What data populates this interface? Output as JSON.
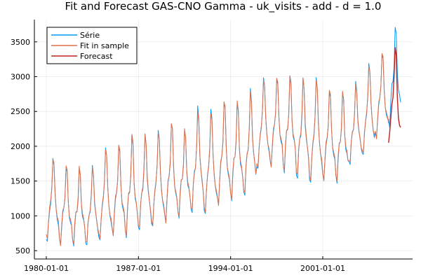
{
  "chart_data": {
    "type": "line",
    "title": "Fit and Forecast GAS-CNO Gamma - uk_visits - add - d = 1.0",
    "xlabel": "",
    "ylabel": "",
    "x_range": [
      "1980-01-01",
      "2006-12-01"
    ],
    "ylim": [
      380,
      3820
    ],
    "x_ticks": [
      "1980-01-01",
      "1987-01-01",
      "1994-01-01",
      "2001-01-01"
    ],
    "y_ticks": [
      500,
      1000,
      1500,
      2000,
      2500,
      3000,
      3500
    ],
    "grid": true,
    "legend_position": "top-left",
    "monthly_start": "1980-01",
    "series": [
      {
        "name": "Série",
        "color": "#009AFA",
        "annual_lows": [
          600,
          580,
          600,
          580,
          620,
          720,
          720,
          800,
          820,
          900,
          1000,
          1050,
          1000,
          1150,
          1250,
          1300,
          1650,
          1700,
          1650,
          1550,
          1450,
          1500,
          1500,
          1750,
          1850,
          2100,
          2300
        ],
        "annual_peaks": [
          1850,
          1700,
          1650,
          1700,
          2000,
          2000,
          2150,
          2150,
          2250,
          2350,
          2200,
          2550,
          2550,
          2650,
          2600,
          2800,
          3000,
          2980,
          3000,
          2950,
          3000,
          2800,
          2750,
          2900,
          3200,
          3350,
          3700
        ]
      },
      {
        "name": "Fit in sample",
        "color": "#E26F46",
        "annual_lows": [
          650,
          600,
          620,
          600,
          650,
          740,
          740,
          820,
          840,
          920,
          1020,
          1070,
          1030,
          1170,
          1270,
          1320,
          1670,
          1720,
          1680,
          1580,
          1480,
          1520,
          1530,
          1770,
          1870,
          2120,
          2280
        ],
        "annual_peaks": [
          1850,
          1720,
          1680,
          1700,
          1980,
          2020,
          2130,
          2170,
          2230,
          2330,
          2220,
          2500,
          2500,
          2650,
          2620,
          2780,
          2980,
          2990,
          2980,
          2970,
          2980,
          2820,
          2760,
          2880,
          3180,
          3350,
          3430
        ]
      },
      {
        "name": "Forecast",
        "color": "#C0221F",
        "x": [
          "2006-01",
          "2006-02",
          "2006-03",
          "2006-04",
          "2006-05",
          "2006-06",
          "2006-07",
          "2006-08",
          "2006-09",
          "2006-10",
          "2006-11",
          "2006-12"
        ],
        "values": [
          2050,
          2200,
          2400,
          2600,
          2700,
          3000,
          3420,
          3300,
          2700,
          2400,
          2300,
          2270
        ]
      }
    ]
  }
}
